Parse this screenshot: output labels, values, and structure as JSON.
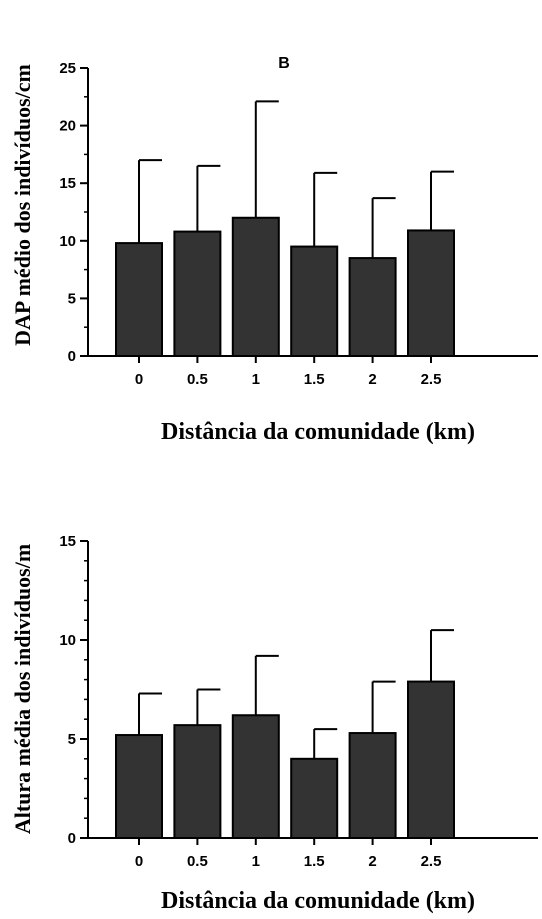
{
  "chart_data": [
    {
      "type": "bar",
      "panel_label": "B",
      "ylabel": "DAP médio dos indivíduos/cm",
      "xlabel": "Distância da comunidade (km)",
      "categories": [
        "0",
        "0.5",
        "1",
        "1.5",
        "2",
        "2.5"
      ],
      "values": [
        9.8,
        10.8,
        12.0,
        9.5,
        8.5,
        10.9
      ],
      "errors": [
        7.2,
        5.7,
        10.1,
        6.4,
        5.2,
        5.1
      ],
      "ylim": [
        0,
        25
      ],
      "yticks": [
        "0",
        "5",
        "10",
        "15",
        "20",
        "25"
      ],
      "bar_color": "#333333",
      "grid": false
    },
    {
      "type": "bar",
      "panel_label": "",
      "ylabel": "Altura média dos indivíduos/m",
      "xlabel": "Distância da comunidade (km)",
      "categories": [
        "0",
        "0.5",
        "1",
        "1.5",
        "2",
        "2.5"
      ],
      "values": [
        5.2,
        5.7,
        6.2,
        4.0,
        5.3,
        7.9
      ],
      "errors": [
        2.1,
        1.8,
        3.0,
        1.5,
        2.6,
        2.6
      ],
      "ylim": [
        0,
        15
      ],
      "yticks": [
        "0",
        "5",
        "10",
        "15"
      ],
      "bar_color": "#333333",
      "grid": false
    }
  ]
}
